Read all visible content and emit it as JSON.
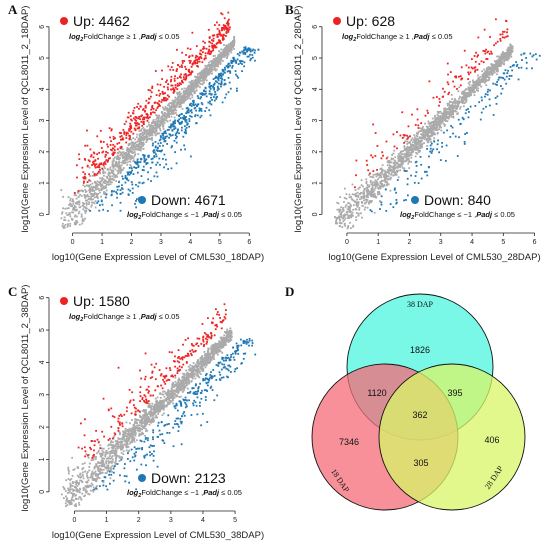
{
  "chart_data": [
    {
      "panel": "A",
      "type": "scatter",
      "xlabel": "log10(Gene Expression Level of CML530_18DAP)",
      "ylabel": "log10(Gene Expression Level of QCL8011_2_18DAP)",
      "xlim": [
        -0.7,
        6.5
      ],
      "ylim": [
        -0.5,
        6.6
      ],
      "xticks": [
        "0",
        "1",
        "2",
        "3",
        "4",
        "5",
        "6"
      ],
      "yticks": [
        "0",
        "1",
        "2",
        "3",
        "4",
        "5",
        "6"
      ],
      "up": {
        "label": "Up: 4462",
        "color": "#ee2222",
        "count": 4462
      },
      "down": {
        "label": "Down: 4671",
        "color": "#1f78b4",
        "count": 4671
      },
      "ns_color": "#aaaaaa",
      "up_condition": {
        "prefix": "log",
        "sub": "2",
        "main": "FoldChange ≥ 1 ,",
        "padj": "Padj",
        "rest": " ≤ 0.05"
      },
      "down_condition": {
        "prefix": "log",
        "sub": "2",
        "main": "FoldChange ≤ −1 ,",
        "padj": "Padj",
        "rest": " ≤ 0.05"
      }
    },
    {
      "panel": "B",
      "type": "scatter",
      "xlabel": "log10(Gene Expression Level of CML530_28DAP)",
      "ylabel": "log10(Gene Expression Level of QCL8011_2_28DAP)",
      "xlim": [
        -0.7,
        6.3
      ],
      "ylim": [
        -0.5,
        6.6
      ],
      "xticks": [
        "0",
        "1",
        "2",
        "3",
        "4",
        "5",
        "6"
      ],
      "yticks": [
        "0",
        "1",
        "2",
        "3",
        "4",
        "5",
        "6"
      ],
      "up": {
        "label": "Up: 628",
        "color": "#ee2222",
        "count": 628
      },
      "down": {
        "label": "Down: 840",
        "color": "#1f78b4",
        "count": 840
      },
      "ns_color": "#aaaaaa",
      "up_condition": {
        "prefix": "log",
        "sub": "2",
        "main": "FoldChange ≥ 1 ,",
        "padj": "Padj",
        "rest": " ≤ 0.05"
      },
      "down_condition": {
        "prefix": "log",
        "sub": "2",
        "main": "FoldChange ≤ −1 ,",
        "padj": "Padj",
        "rest": " ≤ 0.05"
      }
    },
    {
      "panel": "C",
      "type": "scatter",
      "xlabel": "log10(Gene Expression Level of CML530_38DAP)",
      "ylabel": "log10(Gene Expression Level of QCL8011_2_38DAP)",
      "xlim": [
        -0.7,
        5.9
      ],
      "ylim": [
        -0.5,
        6.3
      ],
      "xticks": [
        "0",
        "1",
        "2",
        "3",
        "4",
        "5"
      ],
      "yticks": [
        "0",
        "1",
        "2",
        "3",
        "4",
        "5",
        "6"
      ],
      "up": {
        "label": "Up: 1580",
        "color": "#ee2222",
        "count": 1580
      },
      "down": {
        "label": "Down: 2123",
        "color": "#1f78b4",
        "count": 2123
      },
      "ns_color": "#aaaaaa",
      "up_condition": {
        "prefix": "log",
        "sub": "2",
        "main": "FoldChange ≥ 1 ,",
        "padj": "Padj",
        "rest": " ≤ 0.05"
      },
      "down_condition": {
        "prefix": "log",
        "sub": "2",
        "main": "FoldChange ≤ −1 ,",
        "padj": "Padj",
        "rest": " ≤ 0.05"
      }
    },
    {
      "panel": "D",
      "type": "venn",
      "sets": [
        {
          "name": "38 DAP",
          "color": "#4cf5e0"
        },
        {
          "name": "18 DAP",
          "color": "#f56b78"
        },
        {
          "name": "28 DAP",
          "color": "#d8f567"
        }
      ],
      "regions": [
        {
          "sets": [
            "38 DAP"
          ],
          "value": 1826
        },
        {
          "sets": [
            "18 DAP"
          ],
          "value": 7346
        },
        {
          "sets": [
            "28 DAP"
          ],
          "value": 406
        },
        {
          "sets": [
            "38 DAP",
            "18 DAP"
          ],
          "value": 1120
        },
        {
          "sets": [
            "38 DAP",
            "28 DAP"
          ],
          "value": 395
        },
        {
          "sets": [
            "18 DAP",
            "28 DAP"
          ],
          "value": 305
        },
        {
          "sets": [
            "38 DAP",
            "18 DAP",
            "28 DAP"
          ],
          "value": 362
        }
      ]
    }
  ]
}
